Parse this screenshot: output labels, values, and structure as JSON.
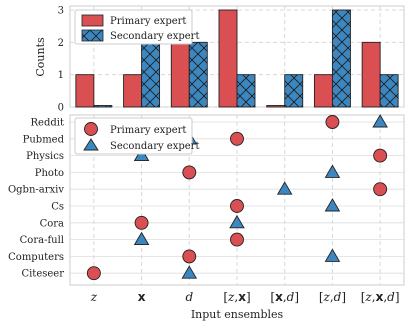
{
  "chart_data": [
    {
      "type": "bar",
      "ylabel": "Counts",
      "ylim": [
        0,
        3
      ],
      "yticks": [
        0,
        1,
        2,
        3
      ],
      "grid": true,
      "legend_placement": "top-left",
      "categories": [
        "z",
        "x",
        "d",
        "[z,x]",
        "[x,d]",
        "[z,d]",
        "[z,x,d]"
      ],
      "series": [
        {
          "name": "Primary expert",
          "color": "#d94f52",
          "hatch": "none",
          "values": [
            1,
            1,
            2,
            3,
            0,
            1,
            2
          ]
        },
        {
          "name": "Secondary expert",
          "color": "#3d87c0",
          "hatch": "cross",
          "values": [
            0,
            2,
            2,
            1,
            1,
            3,
            1
          ]
        }
      ]
    },
    {
      "type": "scatter",
      "xlabel": "Input ensembles",
      "grid": true,
      "legend_placement": "top-left",
      "categories": [
        "z",
        "x",
        "d",
        "[z,x]",
        "[x,d]",
        "[z,d]",
        "[z,x,d]"
      ],
      "datasets": [
        "Reddit",
        "Pubmed",
        "Physics",
        "Photo",
        "Ogbn-arxiv",
        "Cs",
        "Cora",
        "Cora-full",
        "Computers",
        "Citeseer"
      ],
      "series": [
        {
          "name": "Primary expert",
          "marker": "circle",
          "color": "#d94f52",
          "points": [
            {
              "dataset": "Reddit",
              "x": "[z,d]"
            },
            {
              "dataset": "Pubmed",
              "x": "[z,x]"
            },
            {
              "dataset": "Physics",
              "x": "[z,x,d]"
            },
            {
              "dataset": "Photo",
              "x": "d"
            },
            {
              "dataset": "Ogbn-arxiv",
              "x": "[z,x,d]"
            },
            {
              "dataset": "Cs",
              "x": "[z,x]"
            },
            {
              "dataset": "Cora",
              "x": "x"
            },
            {
              "dataset": "Cora-full",
              "x": "[z,x]"
            },
            {
              "dataset": "Computers",
              "x": "d"
            },
            {
              "dataset": "Citeseer",
              "x": "z"
            }
          ]
        },
        {
          "name": "Secondary expert",
          "marker": "triangle",
          "color": "#3d87c0",
          "points": [
            {
              "dataset": "Reddit",
              "x": "[z,x,d]"
            },
            {
              "dataset": "Pubmed",
              "x": "d"
            },
            {
              "dataset": "Physics",
              "x": "x"
            },
            {
              "dataset": "Photo",
              "x": "[z,d]"
            },
            {
              "dataset": "Ogbn-arxiv",
              "x": "[x,d]"
            },
            {
              "dataset": "Cs",
              "x": "[z,d]"
            },
            {
              "dataset": "Cora",
              "x": "[z,x]"
            },
            {
              "dataset": "Cora-full",
              "x": "x"
            },
            {
              "dataset": "Computers",
              "x": "[z,d]"
            },
            {
              "dataset": "Citeseer",
              "x": "d"
            }
          ]
        }
      ]
    }
  ]
}
